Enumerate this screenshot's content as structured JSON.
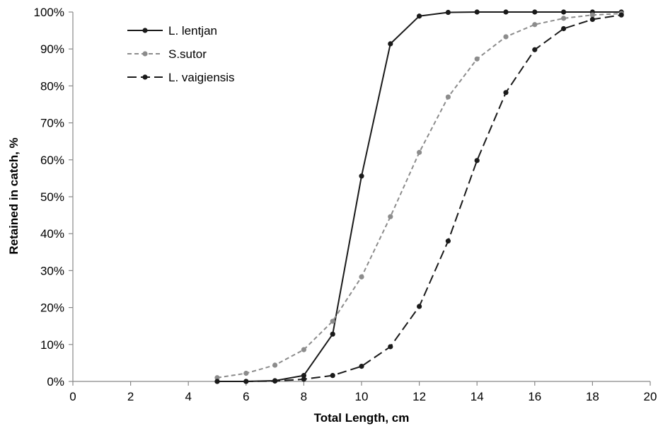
{
  "chart_data": {
    "type": "line",
    "title": "",
    "xlabel": "Total Length, cm",
    "ylabel": "Retained in catch, %",
    "xlim": [
      0,
      20
    ],
    "ylim": [
      0,
      100
    ],
    "x_ticks": [
      0,
      2,
      4,
      6,
      8,
      10,
      12,
      14,
      16,
      18,
      20
    ],
    "y_ticks": [
      0,
      10,
      20,
      30,
      40,
      50,
      60,
      70,
      80,
      90,
      100
    ],
    "x_tick_labels": [
      "0",
      "2",
      "4",
      "6",
      "8",
      "10",
      "12",
      "14",
      "16",
      "18",
      "20"
    ],
    "y_tick_labels": [
      "0%",
      "10%",
      "20%",
      "30%",
      "40%",
      "50%",
      "60%",
      "70%",
      "80%",
      "90%",
      "100%"
    ],
    "grid": false,
    "legend_position": "top-left",
    "series": [
      {
        "name": "L. lentjan",
        "color": "#1a1a1a",
        "line_style": "solid",
        "x": [
          5,
          6,
          7,
          8,
          9,
          10,
          11,
          12,
          13,
          14,
          15,
          16,
          17,
          18,
          19
        ],
        "y": [
          0.0,
          0.0,
          0.2,
          1.6,
          12.8,
          55.6,
          91.4,
          98.9,
          99.9,
          100,
          100,
          100,
          100,
          100,
          100
        ]
      },
      {
        "name": "S.sutor",
        "color": "#8c8c8c",
        "line_style": "dashed",
        "x": [
          5,
          6,
          7,
          8,
          9,
          10,
          11,
          12,
          13,
          14,
          15,
          16,
          17,
          18,
          19
        ],
        "y": [
          1.0,
          2.2,
          4.4,
          8.6,
          16.3,
          28.3,
          44.6,
          62.0,
          77.0,
          87.3,
          93.3,
          96.6,
          98.3,
          99.2,
          99.6
        ]
      },
      {
        "name": "L. vaigiensis",
        "color": "#1a1a1a",
        "line_style": "long-dashed",
        "x": [
          5,
          6,
          7,
          8,
          9,
          10,
          11,
          12,
          13,
          14,
          15,
          16,
          17,
          18,
          19
        ],
        "y": [
          0.0,
          0.0,
          0.1,
          0.6,
          1.6,
          4.1,
          9.4,
          20.3,
          38.0,
          59.8,
          78.2,
          89.8,
          95.5,
          98.0,
          99.2
        ]
      }
    ]
  }
}
